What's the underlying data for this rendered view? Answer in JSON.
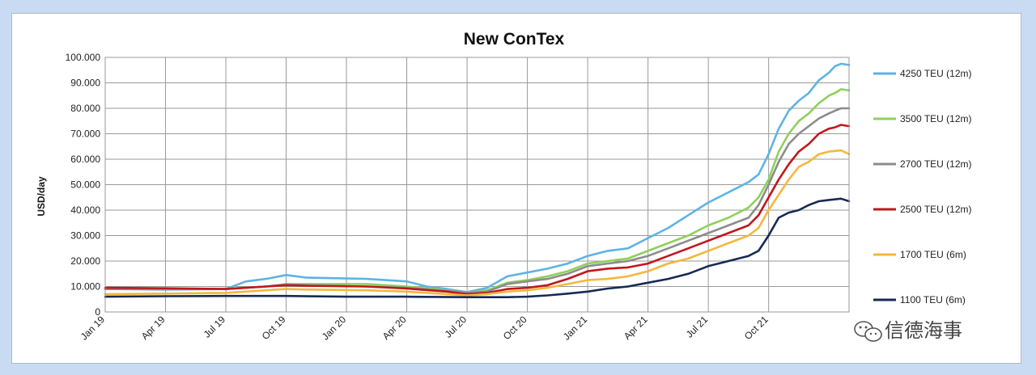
{
  "chart_data": {
    "type": "line",
    "title": "New ConTex",
    "xlabel": "",
    "ylabel": "USD/day",
    "ylim": [
      0,
      100000
    ],
    "y_ticks": [
      "0",
      "10.000",
      "20.000",
      "30.000",
      "40.000",
      "50.000",
      "60.000",
      "70.000",
      "80.000",
      "90.000",
      "100.000"
    ],
    "x_ticks": [
      "Jan 19",
      "Apr 19",
      "Jul 19",
      "Oct 19",
      "Jan 20",
      "Apr 20",
      "Jul 20",
      "Oct 20",
      "Jan 21",
      "Apr 21",
      "Jul 21",
      "Oct 21"
    ],
    "x_unit": "month index (0 = Jan 19)",
    "grid": true,
    "legend_position": "right",
    "series": [
      {
        "name": "4250 TEU (12m)",
        "color": "#5eb3e4",
        "points": [
          [
            0,
            9000
          ],
          [
            3,
            8800
          ],
          [
            6,
            9000
          ],
          [
            7,
            12000
          ],
          [
            8,
            13000
          ],
          [
            9,
            14500
          ],
          [
            10,
            13500
          ],
          [
            13,
            13000
          ],
          [
            15,
            12000
          ],
          [
            16,
            10000
          ],
          [
            17,
            9000
          ],
          [
            18,
            7800
          ],
          [
            19,
            9500
          ],
          [
            20,
            14000
          ],
          [
            21,
            15500
          ],
          [
            22,
            17000
          ],
          [
            23,
            19000
          ],
          [
            24,
            22000
          ],
          [
            25,
            24000
          ],
          [
            26,
            25000
          ],
          [
            27,
            29000
          ],
          [
            28,
            33000
          ],
          [
            29,
            38000
          ],
          [
            30,
            43000
          ],
          [
            31,
            47000
          ],
          [
            32,
            51000
          ],
          [
            32.5,
            54000
          ],
          [
            33,
            62000
          ],
          [
            33.5,
            72000
          ],
          [
            34,
            79000
          ],
          [
            34.5,
            83000
          ],
          [
            35,
            86000
          ],
          [
            35.5,
            91000
          ],
          [
            36,
            94000
          ],
          [
            36.3,
            96500
          ],
          [
            36.6,
            97500
          ],
          [
            37,
            97000
          ]
        ]
      },
      {
        "name": "3500 TEU (12m)",
        "color": "#8fd05a",
        "points": [
          [
            0,
            9000
          ],
          [
            3,
            9000
          ],
          [
            6,
            9000
          ],
          [
            8,
            10000
          ],
          [
            9,
            11000
          ],
          [
            10,
            11000
          ],
          [
            13,
            11000
          ],
          [
            15,
            10000
          ],
          [
            17,
            8500
          ],
          [
            18,
            7500
          ],
          [
            19,
            8500
          ],
          [
            20,
            11500
          ],
          [
            21,
            12500
          ],
          [
            22,
            14000
          ],
          [
            23,
            16000
          ],
          [
            24,
            19000
          ],
          [
            25,
            20000
          ],
          [
            26,
            21000
          ],
          [
            27,
            24000
          ],
          [
            28,
            27000
          ],
          [
            29,
            30000
          ],
          [
            30,
            34000
          ],
          [
            31,
            37000
          ],
          [
            32,
            41000
          ],
          [
            32.5,
            45000
          ],
          [
            33,
            52000
          ],
          [
            33.5,
            63000
          ],
          [
            34,
            70000
          ],
          [
            34.5,
            75000
          ],
          [
            35,
            78000
          ],
          [
            35.5,
            82000
          ],
          [
            36,
            85000
          ],
          [
            36.3,
            86000
          ],
          [
            36.6,
            87500
          ],
          [
            37,
            87000
          ]
        ]
      },
      {
        "name": "2700 TEU (12m)",
        "color": "#8c8c8c",
        "points": [
          [
            0,
            9000
          ],
          [
            3,
            9000
          ],
          [
            6,
            9000
          ],
          [
            8,
            10000
          ],
          [
            9,
            10800
          ],
          [
            10,
            10500
          ],
          [
            13,
            10000
          ],
          [
            15,
            9500
          ],
          [
            17,
            8300
          ],
          [
            18,
            7500
          ],
          [
            19,
            8000
          ],
          [
            20,
            11000
          ],
          [
            21,
            12000
          ],
          [
            22,
            13000
          ],
          [
            23,
            15000
          ],
          [
            24,
            18000
          ],
          [
            25,
            19000
          ],
          [
            26,
            20000
          ],
          [
            27,
            22000
          ],
          [
            28,
            25000
          ],
          [
            29,
            28000
          ],
          [
            30,
            31000
          ],
          [
            31,
            34000
          ],
          [
            32,
            37000
          ],
          [
            32.5,
            42000
          ],
          [
            33,
            50000
          ],
          [
            33.5,
            59000
          ],
          [
            34,
            66000
          ],
          [
            34.5,
            70000
          ],
          [
            35,
            73000
          ],
          [
            35.5,
            76000
          ],
          [
            36,
            78000
          ],
          [
            36.3,
            79000
          ],
          [
            36.6,
            80000
          ],
          [
            37,
            80000
          ]
        ]
      },
      {
        "name": "2500 TEU (12m)",
        "color": "#c0171d",
        "points": [
          [
            0,
            9500
          ],
          [
            3,
            9300
          ],
          [
            6,
            9000
          ],
          [
            8,
            10000
          ],
          [
            9,
            10500
          ],
          [
            10,
            10300
          ],
          [
            13,
            10000
          ],
          [
            15,
            9200
          ],
          [
            17,
            8000
          ],
          [
            18,
            7000
          ],
          [
            19,
            7500
          ],
          [
            20,
            9000
          ],
          [
            21,
            9500
          ],
          [
            22,
            10500
          ],
          [
            23,
            13000
          ],
          [
            24,
            16000
          ],
          [
            25,
            17000
          ],
          [
            26,
            17500
          ],
          [
            27,
            19000
          ],
          [
            28,
            22000
          ],
          [
            29,
            25000
          ],
          [
            30,
            28000
          ],
          [
            31,
            31000
          ],
          [
            32,
            34000
          ],
          [
            32.5,
            38000
          ],
          [
            33,
            45000
          ],
          [
            33.5,
            52000
          ],
          [
            34,
            58000
          ],
          [
            34.5,
            63000
          ],
          [
            35,
            66000
          ],
          [
            35.5,
            70000
          ],
          [
            36,
            72000
          ],
          [
            36.3,
            72500
          ],
          [
            36.6,
            73500
          ],
          [
            37,
            73000
          ]
        ]
      },
      {
        "name": "1700 TEU (6m)",
        "color": "#f4b73e",
        "points": [
          [
            0,
            7000
          ],
          [
            3,
            7200
          ],
          [
            6,
            7500
          ],
          [
            8,
            8500
          ],
          [
            9,
            9000
          ],
          [
            10,
            8800
          ],
          [
            13,
            8500
          ],
          [
            15,
            8000
          ],
          [
            17,
            7000
          ],
          [
            18,
            6500
          ],
          [
            19,
            7000
          ],
          [
            20,
            8000
          ],
          [
            21,
            8500
          ],
          [
            22,
            9500
          ],
          [
            23,
            11000
          ],
          [
            24,
            12500
          ],
          [
            25,
            13000
          ],
          [
            26,
            14000
          ],
          [
            27,
            16000
          ],
          [
            28,
            19000
          ],
          [
            29,
            21000
          ],
          [
            30,
            24000
          ],
          [
            31,
            27000
          ],
          [
            32,
            30000
          ],
          [
            32.5,
            33000
          ],
          [
            33,
            40000
          ],
          [
            33.5,
            46000
          ],
          [
            34,
            52000
          ],
          [
            34.5,
            57000
          ],
          [
            35,
            59000
          ],
          [
            35.5,
            62000
          ],
          [
            36,
            63000
          ],
          [
            36.6,
            63500
          ],
          [
            37,
            62000
          ]
        ]
      },
      {
        "name": "1100 TEU (6m)",
        "color": "#172a55",
        "points": [
          [
            0,
            6000
          ],
          [
            3,
            6200
          ],
          [
            6,
            6300
          ],
          [
            9,
            6300
          ],
          [
            12,
            6000
          ],
          [
            15,
            6000
          ],
          [
            18,
            5800
          ],
          [
            20,
            5800
          ],
          [
            21,
            6000
          ],
          [
            22,
            6500
          ],
          [
            23,
            7200
          ],
          [
            24,
            8000
          ],
          [
            25,
            9200
          ],
          [
            26,
            10000
          ],
          [
            27,
            11500
          ],
          [
            28,
            13000
          ],
          [
            29,
            15000
          ],
          [
            30,
            18000
          ],
          [
            31,
            20000
          ],
          [
            32,
            22000
          ],
          [
            32.5,
            24000
          ],
          [
            33,
            30000
          ],
          [
            33.5,
            37000
          ],
          [
            34,
            39000
          ],
          [
            34.5,
            40000
          ],
          [
            35,
            42000
          ],
          [
            35.5,
            43500
          ],
          [
            36,
            44000
          ],
          [
            36.6,
            44500
          ],
          [
            37,
            43500
          ]
        ]
      }
    ]
  },
  "watermark": {
    "text": "信德海事",
    "icon": "wechat-icon"
  }
}
